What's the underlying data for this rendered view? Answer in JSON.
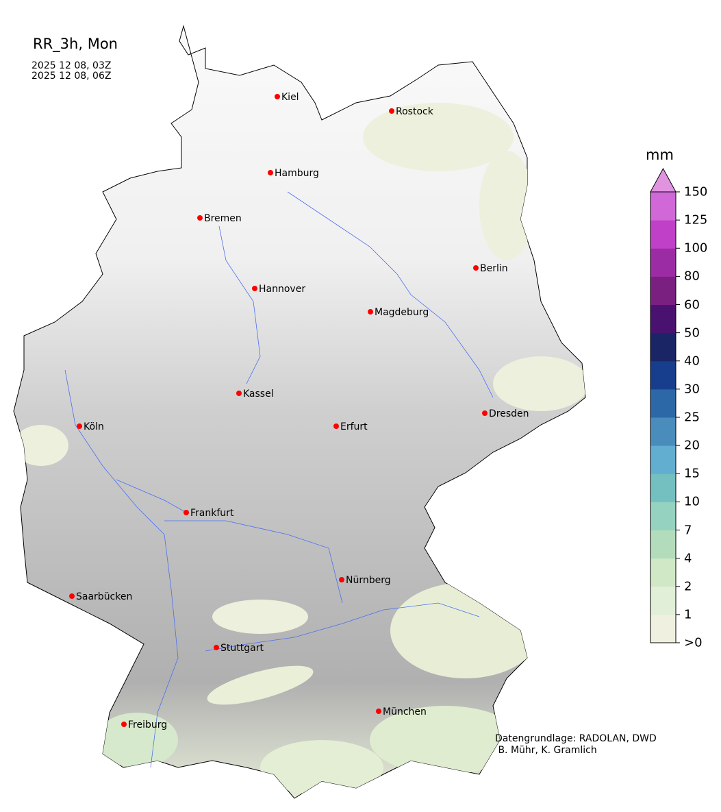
{
  "title": "RR_3h, Mon",
  "dates": [
    "2025 12 08, 03Z",
    "2025 12 08, 06Z"
  ],
  "credits": "Datengrundlage: RADOLAN, DWD\n B. Mühr, K. Gramlich",
  "colorbar": {
    "unit": "mm",
    "ticks": [
      ">0",
      "1",
      "2",
      "4",
      "7",
      "10",
      "15",
      "20",
      "25",
      "30",
      "40",
      "50",
      "60",
      "80",
      "100",
      "125",
      "150"
    ],
    "colors": [
      "#f0f0e0",
      "#e2efd8",
      "#d0e8c6",
      "#b2dcbc",
      "#96d2c0",
      "#74bfc0",
      "#62aed0",
      "#4a8cbc",
      "#2c68a8",
      "#163e8c",
      "#1a2566",
      "#4a1270",
      "#7a2080",
      "#9c2ca4",
      "#c040c8",
      "#d068d8"
    ],
    "extend_color": "#e094e0",
    "extend": "max"
  },
  "cities": [
    {
      "name": "Kiel"
    },
    {
      "name": "Rostock"
    },
    {
      "name": "Hamburg"
    },
    {
      "name": "Bremen"
    },
    {
      "name": "Berlin"
    },
    {
      "name": "Hannover"
    },
    {
      "name": "Magdeburg"
    },
    {
      "name": "Kassel"
    },
    {
      "name": "Dresden"
    },
    {
      "name": "Köln"
    },
    {
      "name": "Erfurt"
    },
    {
      "name": "Frankfurt"
    },
    {
      "name": "Nürnberg"
    },
    {
      "name": "Saarbücken"
    },
    {
      "name": "Stuttgart"
    },
    {
      "name": "München"
    },
    {
      "name": "Freiburg"
    }
  ],
  "city_marker_color": "#ff0000",
  "river_color": "#4a6ff0"
}
